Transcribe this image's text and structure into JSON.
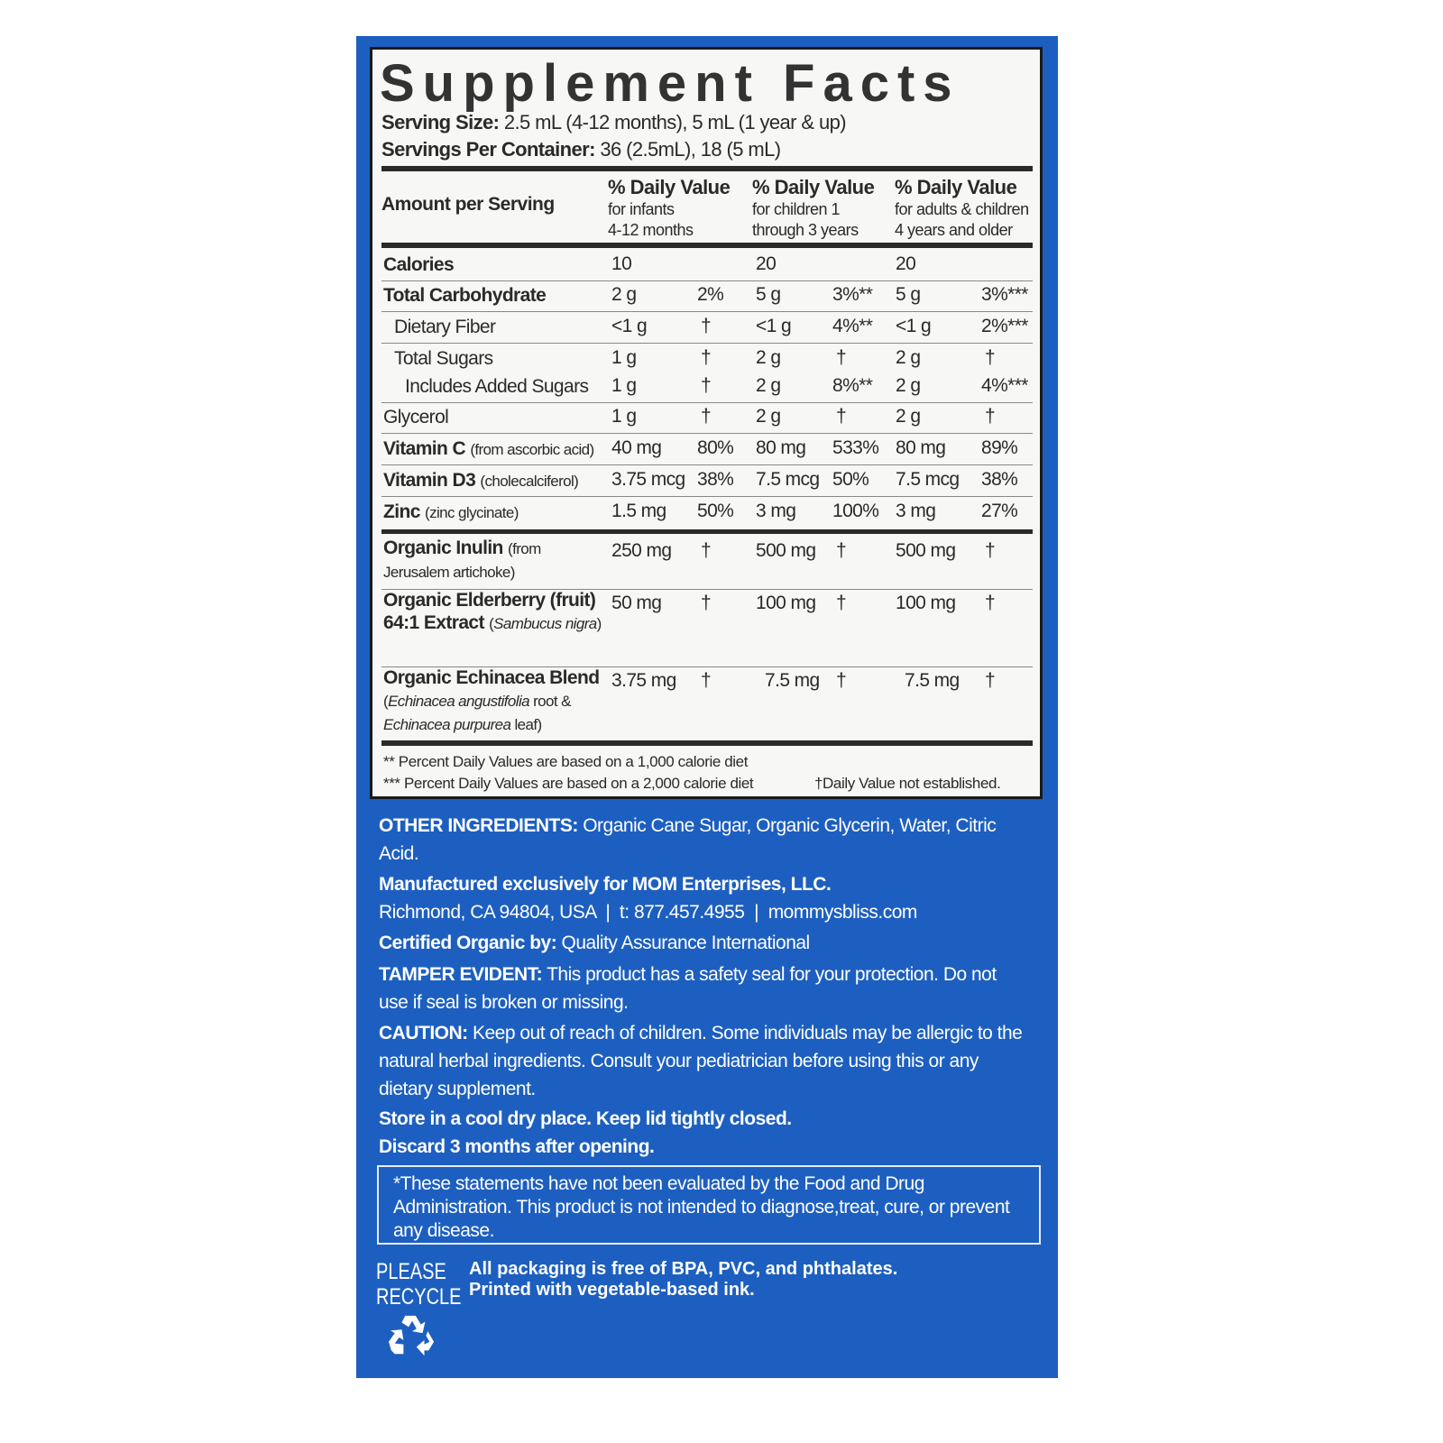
{
  "title": "Supplement Facts",
  "serving_size": {
    "label": "Serving Size:",
    "value": "2.5 mL (4-12 months), 5 mL (1 year & up)"
  },
  "servings_per_container": {
    "label": "Servings Per Container:",
    "value": "36 (2.5mL), 18 (5 mL)"
  },
  "header": {
    "amount": "Amount per Serving",
    "cols": [
      {
        "title": "% Daily Value",
        "l1": "for infants",
        "l2": "4-12 months"
      },
      {
        "title": "% Daily Value",
        "l1": "for children 1",
        "l2": "through 3 years"
      },
      {
        "title": "% Daily Value",
        "l1": "for adults & children",
        "l2": "4 years and older"
      }
    ]
  },
  "rows": [
    {
      "label": [
        [
          "Calories",
          "b"
        ]
      ],
      "v": [
        "10",
        "",
        "20",
        "",
        "20",
        ""
      ]
    },
    {
      "label": [
        [
          "Total Carbohydrate",
          "b"
        ]
      ],
      "v": [
        "2 g",
        "2%",
        "5 g",
        "3%**",
        "5 g",
        "3%***"
      ]
    },
    {
      "label": [
        [
          "Dietary Fiber",
          ""
        ]
      ],
      "indent": 1,
      "v": [
        "<1 g",
        "†",
        "<1 g",
        "4%**",
        "<1 g",
        "2%***"
      ]
    },
    {
      "label": [
        [
          "Total Sugars",
          ""
        ]
      ],
      "indent": 1,
      "v": [
        "1 g",
        "†",
        "2 g",
        "†",
        "2 g",
        "†"
      ]
    },
    {
      "label": [
        [
          "Includes Added Sugars",
          ""
        ]
      ],
      "indent": 2,
      "v": [
        "1 g",
        "†",
        "2 g",
        "8%**",
        "2 g",
        "4%***"
      ]
    },
    {
      "label": [
        [
          "Glycerol",
          ""
        ]
      ],
      "v": [
        "1 g",
        "†",
        "2 g",
        "†",
        "2 g",
        "†"
      ]
    },
    {
      "label": [
        [
          "Vitamin C ",
          "b"
        ],
        [
          "(from ascorbic acid)",
          "s"
        ]
      ],
      "v": [
        "40 mg",
        "80%",
        "80 mg",
        "533%",
        "80 mg",
        "89%"
      ]
    },
    {
      "label": [
        [
          "Vitamin D3 ",
          "b"
        ],
        [
          "(cholecalciferol)",
          "s"
        ]
      ],
      "v": [
        "3.75 mcg",
        "38%",
        "7.5 mcg",
        "50%",
        "7.5 mcg",
        "38%"
      ]
    },
    {
      "label": [
        [
          "Zinc ",
          "b"
        ],
        [
          "(zinc glycinate)",
          "s"
        ]
      ],
      "v": [
        "1.5 mg",
        "50%",
        "3 mg",
        "100%",
        "3 mg",
        "27%"
      ]
    },
    {
      "label": [
        [
          "Organic Inulin ",
          "b"
        ],
        [
          "(from Jerusalem artichoke)",
          "s"
        ]
      ],
      "v": [
        "250 mg",
        "†",
        "500 mg",
        "†",
        "500 mg",
        "†"
      ]
    },
    {
      "label": [
        [
          "Organic Elderberry (fruit) 64:1 Extract ",
          "b"
        ],
        [
          "(",
          "s"
        ],
        [
          "Sambucus nigra",
          "i"
        ],
        [
          ")",
          "s"
        ]
      ],
      "v": [
        "50 mg",
        "†",
        "100 mg",
        "†",
        "100 mg",
        "†"
      ]
    },
    {
      "label": [
        [
          "Organic Echinacea Blend ",
          "b"
        ],
        [
          "(",
          "s"
        ],
        [
          "Echinacea angustifolia",
          "i"
        ],
        [
          " root & ",
          "s"
        ],
        [
          "Echinacea purpurea",
          "i"
        ],
        [
          " leaf)",
          "s"
        ]
      ],
      "v": [
        "3.75 mg",
        "†",
        "7.5 mg",
        "†",
        "7.5 mg",
        "†"
      ]
    }
  ],
  "footnotes": {
    "f1": "** Percent Daily Values are based on a 1,000 calorie diet",
    "f2": "*** Percent Daily Values are based on a 2,000 calorie diet",
    "f3": "†Daily Value not established."
  },
  "other_ingredients": {
    "label": "OTHER INGREDIENTS:",
    "value": "Organic Cane Sugar, Organic Glycerin, Water, Citric Acid."
  },
  "manufacturer": {
    "label": "Manufactured exclusively for MOM Enterprises, LLC.",
    "address": "Richmond, CA 94804, USA  |  t: 877.457.4955  |  mommysbliss.com"
  },
  "certified": {
    "label": "Certified Organic by:",
    "value": "Quality Assurance International"
  },
  "tamper": {
    "label": "TAMPER EVIDENT:",
    "value": "This product has a safety seal for your protection. Do not use if seal is broken or missing."
  },
  "caution": {
    "label": "CAUTION:",
    "value": "Keep out of reach of children. Some individuals may be allergic to the natural herbal ingredients. Consult your pediatrician before using this or any dietary supplement."
  },
  "storage": {
    "l1": "Store in a cool dry place. Keep lid tightly closed.",
    "l2": "Discard 3 months after opening."
  },
  "disclaimer": "*These statements have not been evaluated by the Food and Drug Administration. This product is not intended to diagnose,treat, cure, or prevent any disease.",
  "recycle": {
    "l1": "PLEASE",
    "l2": "RECYCLE",
    "icon": "recycle-icon"
  },
  "packaging": {
    "l1": "All packaging is free of BPA, PVC, and phthalates.",
    "l2": "Printed with vegetable-based ink."
  },
  "colors": {
    "panel": "#1d5fc0",
    "text": "#2a2a2a"
  }
}
